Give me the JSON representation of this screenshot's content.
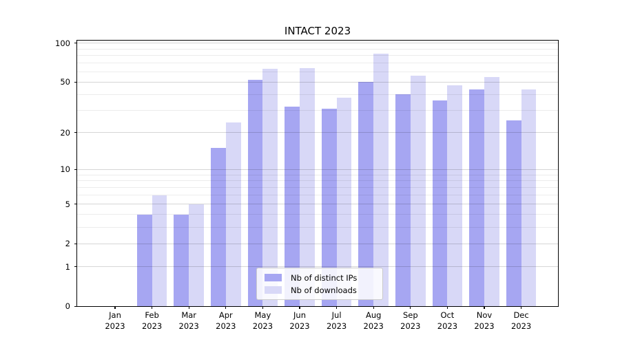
{
  "figure": {
    "title": "INTACT 2023"
  },
  "chart_data": {
    "type": "bar",
    "title": "INTACT 2023",
    "scale": "log1p",
    "grid": true,
    "legend_position": "lower center",
    "categories": [
      "Jan",
      "Feb",
      "Mar",
      "Apr",
      "May",
      "Jun",
      "Jul",
      "Aug",
      "Sep",
      "Oct",
      "Nov",
      "Dec"
    ],
    "x_tick_year": "2023",
    "series": [
      {
        "name": "Nb of distinct IPs",
        "color": "#a6a6f2",
        "values": [
          0,
          4,
          4,
          15,
          52,
          32,
          31,
          50,
          40,
          36,
          44,
          25
        ]
      },
      {
        "name": "Nb of downloads",
        "color": "#d8d8f7",
        "values": [
          0,
          6,
          5,
          24,
          63,
          64,
          38,
          83,
          56,
          47,
          55,
          44
        ]
      }
    ],
    "y_ticks": [
      0,
      1,
      2,
      5,
      10,
      20,
      50,
      100
    ],
    "y_minor_gridlines": [
      3,
      4,
      6,
      7,
      8,
      9,
      30,
      40,
      60,
      70,
      80,
      90
    ],
    "ylim": [
      0,
      104.5
    ],
    "colors": {
      "major_grid": "rgba(0,0,0,0.16)",
      "minor_grid": "rgba(0,0,0,0.075)",
      "spine": "#000000",
      "text": "#000000"
    }
  }
}
